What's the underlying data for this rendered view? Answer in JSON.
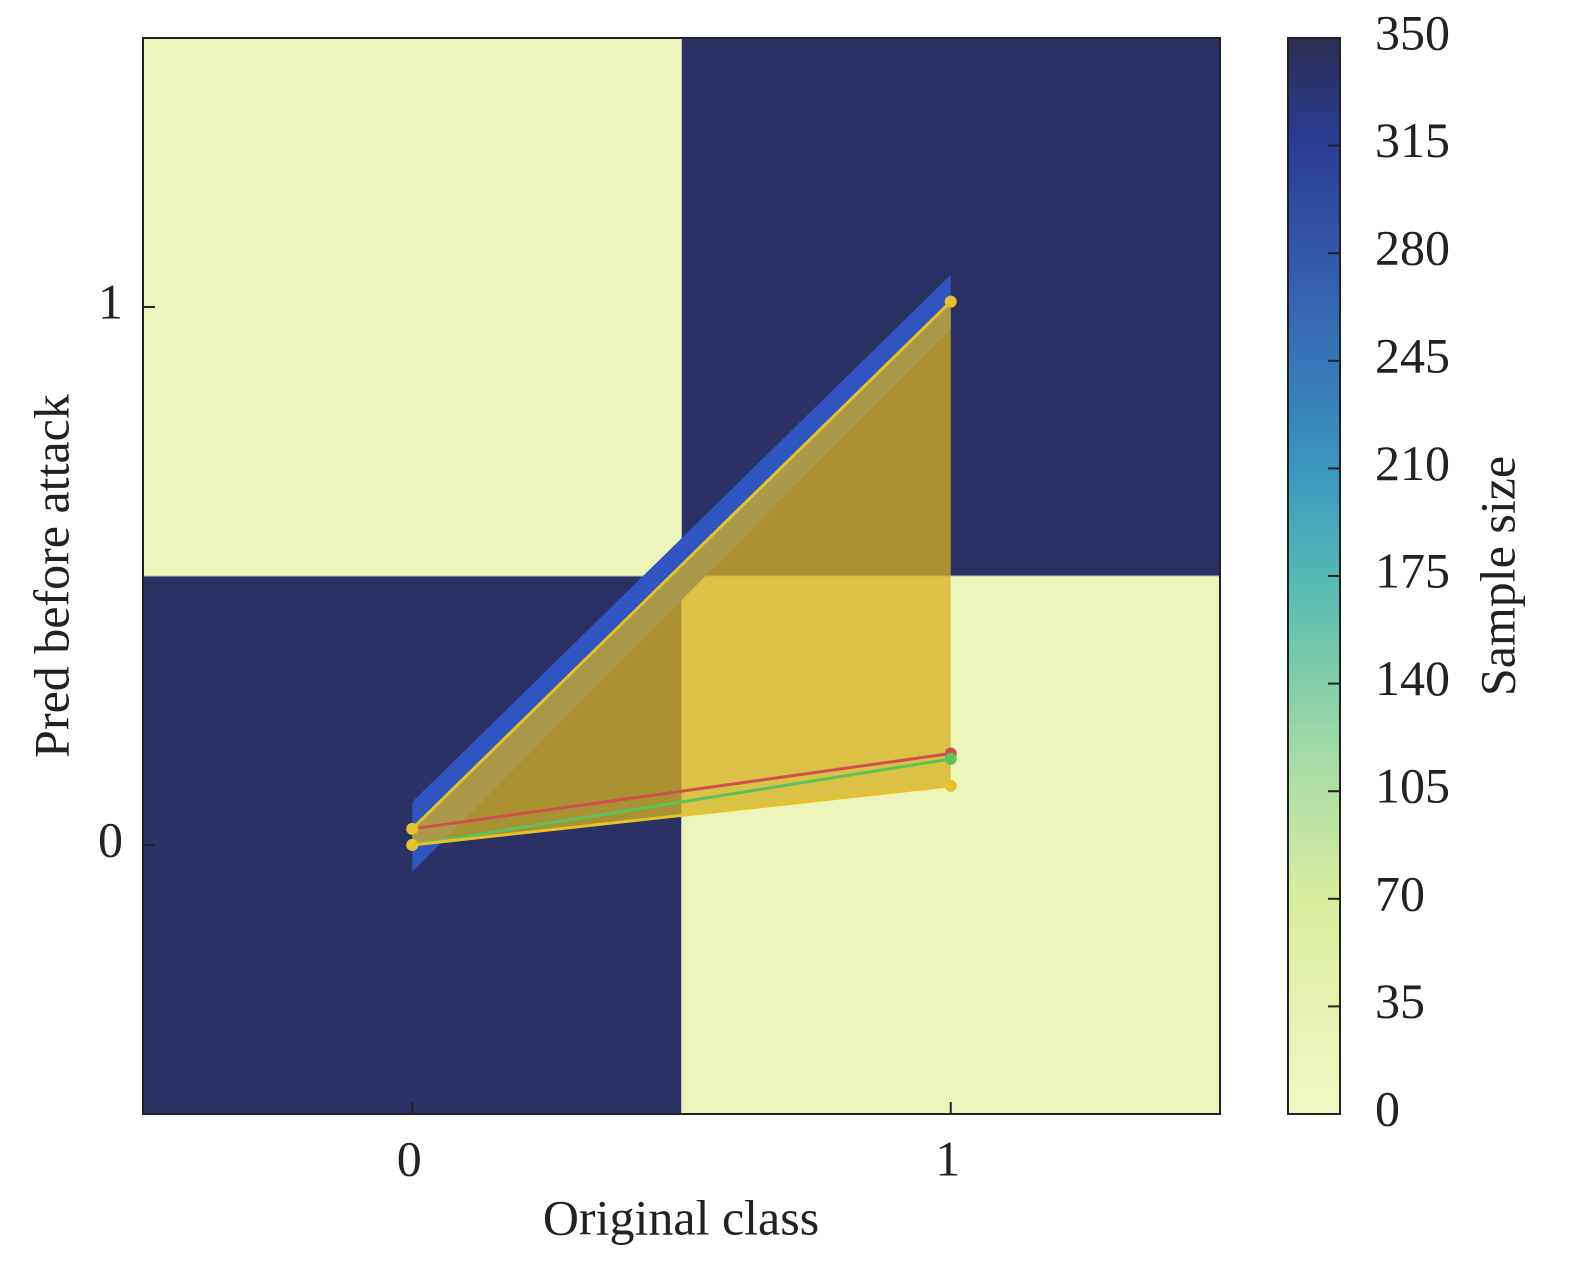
{
  "chart_data": {
    "type": "heatmap",
    "xlabel": "Original class",
    "ylabel": "Pred before attack",
    "colorbar_label": "Sample size",
    "x": [
      0,
      1
    ],
    "y": [
      0,
      1
    ],
    "values": [
      [
        340,
        15
      ],
      [
        15,
        340
      ]
    ],
    "xlim": [
      -0.5,
      1.5
    ],
    "ylim": [
      -0.5,
      1.5
    ],
    "xticks": [
      0,
      1
    ],
    "yticks": [
      0,
      1
    ],
    "clim": [
      0,
      350
    ],
    "cticks": [
      0,
      35,
      70,
      105,
      140,
      175,
      210,
      245,
      280,
      315,
      350
    ],
    "colormap": "YlGnBu",
    "bands": [
      {
        "color": "#2f55c0",
        "upper": [
          0.08,
          1.06
        ],
        "lower": [
          -0.05,
          0.96
        ],
        "opacity": 1
      },
      {
        "color": "#d4b020",
        "upper": [
          0.03,
          1.01
        ],
        "lower": [
          0.0,
          0.11
        ],
        "opacity": 0.75
      }
    ],
    "series": [
      {
        "color": "#d05050",
        "values": [
          0.03,
          0.17
        ]
      },
      {
        "color": "#5cc35a",
        "values": [
          0.0,
          0.16
        ]
      },
      {
        "color": "#e6c22a",
        "values": [
          0.03,
          1.01
        ]
      },
      {
        "color": "#e6c22a",
        "values": [
          0.0,
          0.11
        ]
      }
    ]
  }
}
